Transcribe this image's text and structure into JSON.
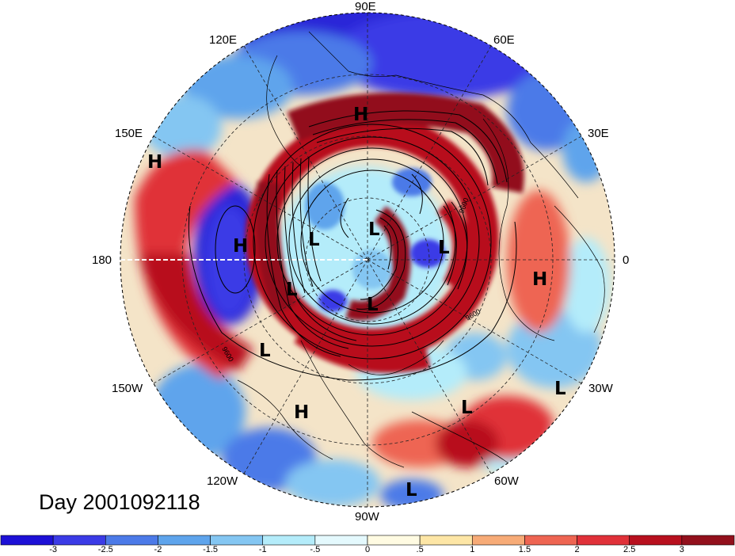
{
  "day_label": "Day 2001092118",
  "longitude_labels": {
    "lon_90e": "90E",
    "lon_120e": "120E",
    "lon_60e": "60E",
    "lon_150e": "150E",
    "lon_30e": "30E",
    "lon_180": "180",
    "lon_0": "0",
    "lon_150w": "150W",
    "lon_30w": "30W",
    "lon_120w": "120W",
    "lon_60w": "60W",
    "lon_90w": "90W"
  },
  "pressure_centers": [
    {
      "label": "H"
    },
    {
      "label": "H"
    },
    {
      "label": "H"
    },
    {
      "label": "H"
    },
    {
      "label": "H"
    },
    {
      "label": "L"
    },
    {
      "label": "L"
    },
    {
      "label": "L"
    },
    {
      "label": "L"
    },
    {
      "label": "L"
    },
    {
      "label": "L"
    },
    {
      "label": "L"
    },
    {
      "label": "L"
    },
    {
      "label": "L"
    }
  ],
  "contour_labels": [
    "9600",
    "9600",
    "9600"
  ],
  "colorbar": {
    "ticks": [
      "-3",
      "-2.5",
      "-2",
      "-1.5",
      "-1",
      "-.5",
      "0",
      ".5",
      "1",
      "1.5",
      "2",
      "2.5",
      "3"
    ],
    "colors": [
      "#1d10d6",
      "#3b3be6",
      "#4c7ae8",
      "#5ea4ec",
      "#84c6f2",
      "#b4ecfa",
      "#e4f9fd",
      "#fffbe2",
      "#fde6a6",
      "#f7ab77",
      "#ee6552",
      "#e03139",
      "#b8101e",
      "#92101c"
    ]
  }
}
